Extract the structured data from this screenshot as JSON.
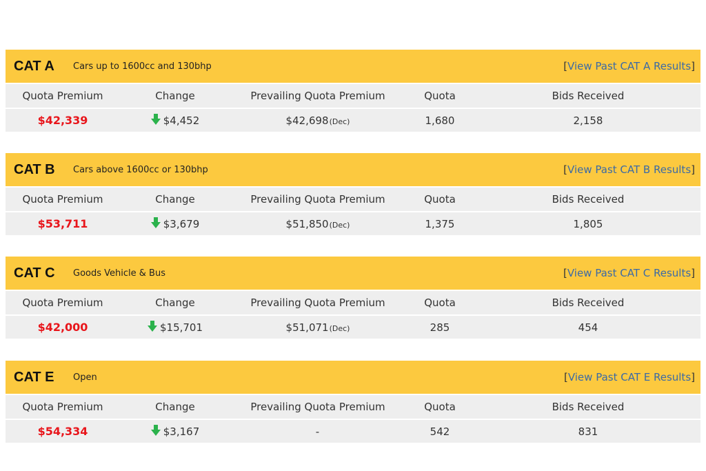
{
  "columns": {
    "quota_premium": "Quota Premium",
    "change": "Change",
    "prevailing": "Prevailing Quota Premium",
    "quota": "Quota",
    "bids": "Bids Received"
  },
  "colors": {
    "header_bg": "#fcc93f",
    "premium": "#e8151b",
    "arrow_down": "#2bb24c",
    "link": "#3b6aa6"
  },
  "categories": [
    {
      "name": "CAT A",
      "description": "Cars up to 1600cc and 130bhp",
      "link_bracket_open": "[",
      "link": "View Past CAT A Results",
      "link_bracket_close": "]",
      "quota_premium": "$42,339",
      "change_direction": "down",
      "change": "$4,452",
      "prevailing": "$42,698",
      "prevailing_note": "(Dec)",
      "quota": "1,680",
      "bids": "2,158"
    },
    {
      "name": "CAT B",
      "description": "Cars above 1600cc or 130bhp",
      "link_bracket_open": "[",
      "link": "View Past CAT B Results",
      "link_bracket_close": "]",
      "quota_premium": "$53,711",
      "change_direction": "down",
      "change": "$3,679",
      "prevailing": "$51,850",
      "prevailing_note": "(Dec)",
      "quota": "1,375",
      "bids": "1,805"
    },
    {
      "name": "CAT C",
      "description": "Goods Vehicle & Bus",
      "link_bracket_open": "[",
      "link": "View Past CAT C Results",
      "link_bracket_close": "]",
      "quota_premium": "$42,000",
      "change_direction": "down",
      "change": "$15,701",
      "prevailing": "$51,071",
      "prevailing_note": "(Dec)",
      "quota": "285",
      "bids": "454"
    },
    {
      "name": "CAT E",
      "description": "Open",
      "link_bracket_open": "[",
      "link": "View Past CAT E Results",
      "link_bracket_close": "]",
      "quota_premium": "$54,334",
      "change_direction": "down",
      "change": "$3,167",
      "prevailing": "-",
      "prevailing_note": "",
      "quota": "542",
      "bids": "831"
    }
  ]
}
